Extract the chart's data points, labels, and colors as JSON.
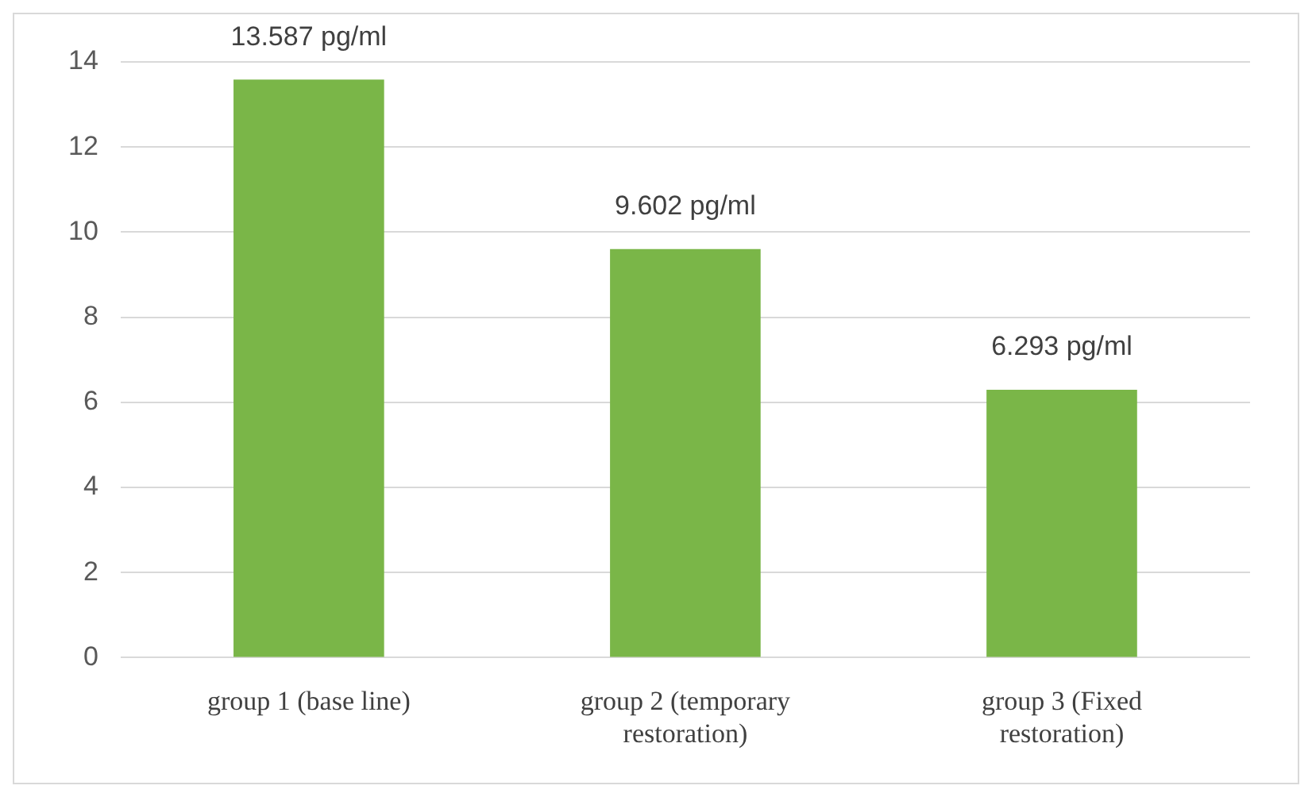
{
  "chart_data": {
    "type": "bar",
    "categories": [
      "group 1 (base line)",
      "group 2 (temporary restoration)",
      "group 3 (Fixed restoration)"
    ],
    "values": [
      13.587,
      9.602,
      6.293
    ],
    "color": "#7ab648",
    "value_labels": [
      "13.587 pg/ml",
      "9.602 pg/ml",
      "6.293 pg/ml"
    ],
    "ylim": [
      0,
      14
    ],
    "yticks": [
      0,
      2,
      4,
      6,
      8,
      10,
      12,
      14
    ],
    "grid": "y",
    "legend": false
  }
}
